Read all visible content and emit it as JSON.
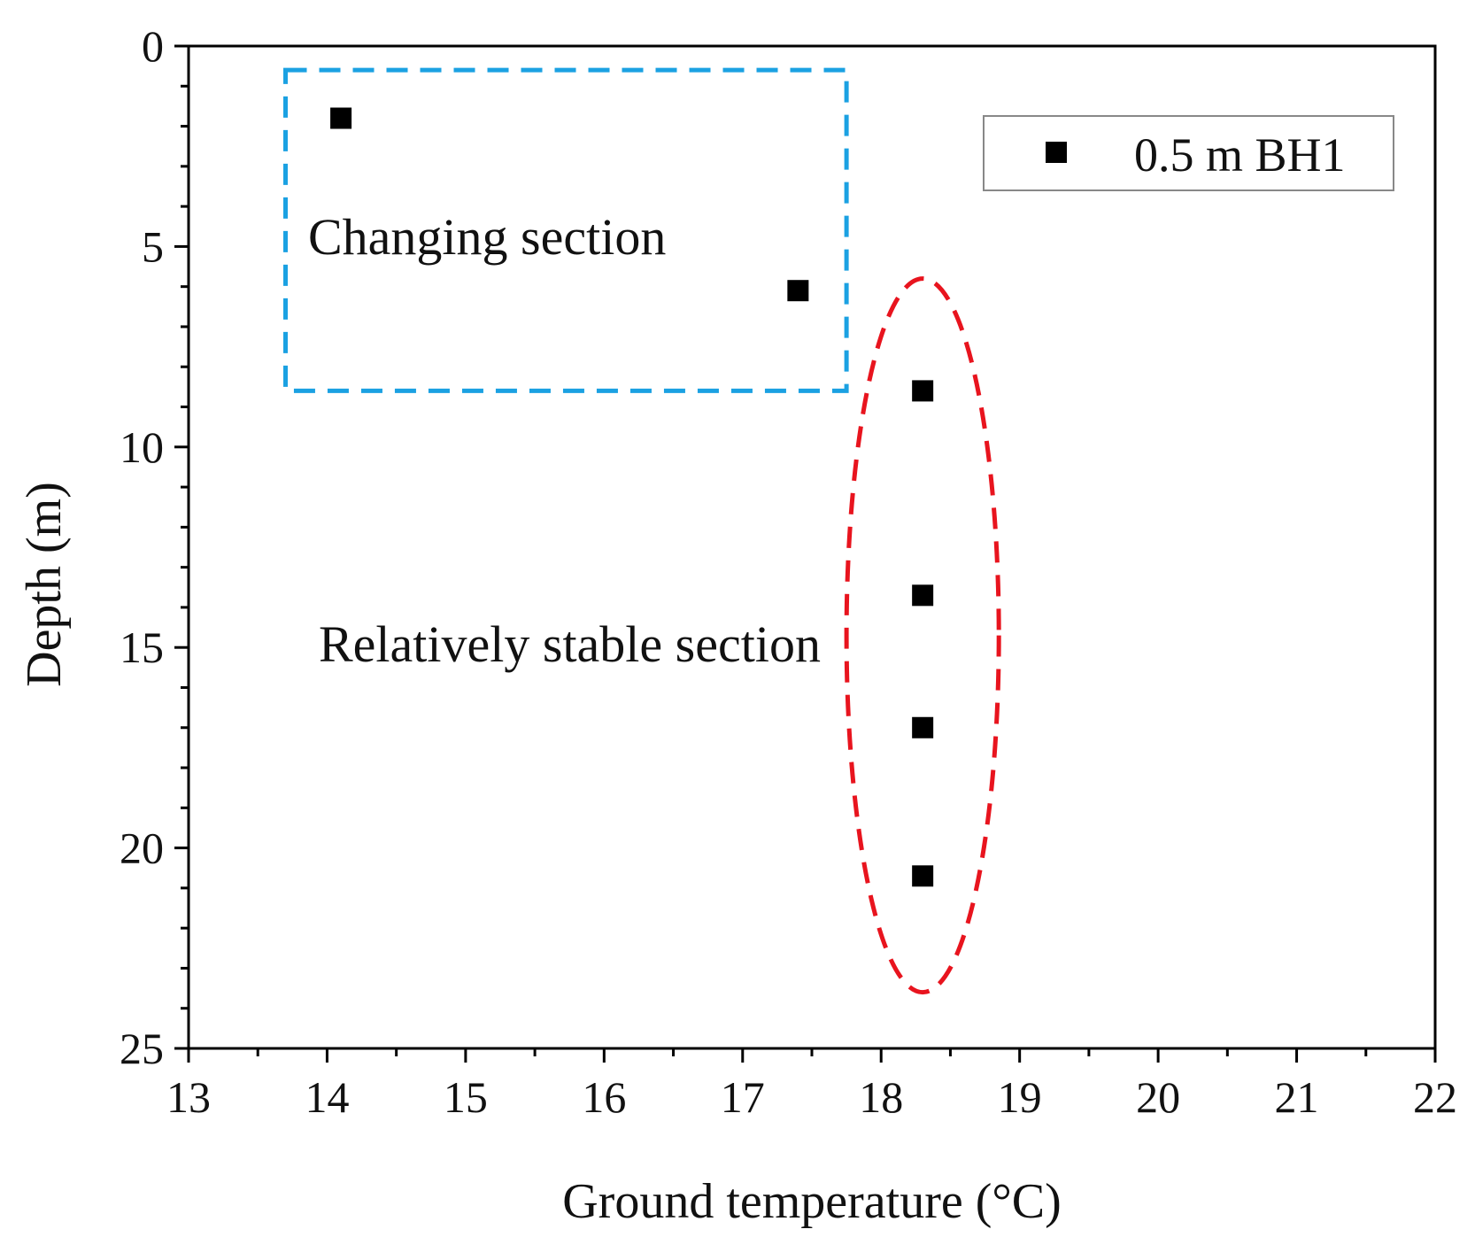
{
  "chart_data": {
    "type": "scatter",
    "title": "",
    "xlabel": "Ground temperature (°C)",
    "ylabel": "Depth (m)",
    "xlim": [
      13,
      22
    ],
    "ylim": [
      25,
      0
    ],
    "x_ticks": [
      13,
      14,
      15,
      16,
      17,
      18,
      19,
      20,
      21,
      22
    ],
    "y_ticks": [
      0,
      5,
      10,
      15,
      20,
      25
    ],
    "grid": false,
    "legend_position": "top-right",
    "series": [
      {
        "name": "0.5 m BH1",
        "marker": "square",
        "color": "#000000",
        "points": [
          {
            "x": 14.1,
            "y": 1.8
          },
          {
            "x": 17.4,
            "y": 6.1
          },
          {
            "x": 18.3,
            "y": 8.6
          },
          {
            "x": 18.3,
            "y": 13.7
          },
          {
            "x": 18.3,
            "y": 17.0
          },
          {
            "x": 18.3,
            "y": 20.7
          }
        ]
      }
    ],
    "annotations": [
      {
        "text": "Changing section",
        "highlight": "dashed-rectangle",
        "color": "#1ba1e2",
        "x_range": [
          13.7,
          17.75
        ],
        "y_range": [
          0.6,
          8.6
        ]
      },
      {
        "text": "Relatively stable section",
        "highlight": "dashed-ellipse",
        "color": "#e8141e",
        "x_range": [
          17.75,
          18.85
        ],
        "y_range": [
          5.8,
          23.6
        ]
      }
    ]
  }
}
